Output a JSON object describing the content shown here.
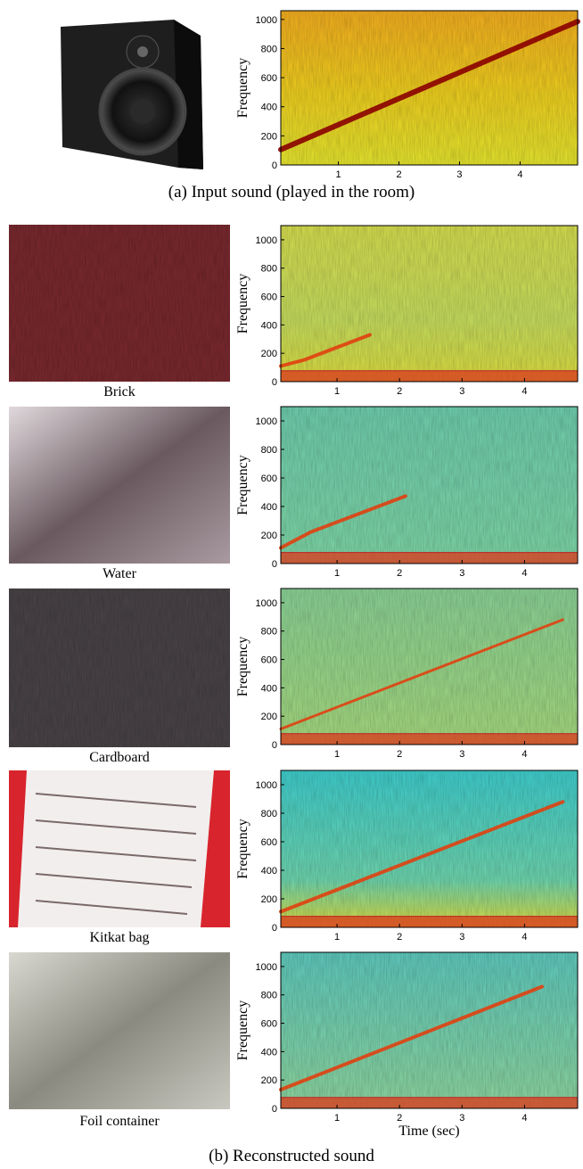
{
  "captions": {
    "a": "(a) Input sound (played in the room)",
    "b": "(b) Reconstructed sound"
  },
  "images": [
    {
      "label": "Brick"
    },
    {
      "label": "Water"
    },
    {
      "label": "Cardboard"
    },
    {
      "label": "Kitkat bag"
    },
    {
      "label": "Foil container"
    }
  ],
  "chart_data": [
    {
      "type": "spectrogram",
      "ylabel": "Frequency",
      "xlim": [
        0.05,
        4.95
      ],
      "xticks": [
        1,
        2,
        3,
        4
      ],
      "ylim": [
        0,
        1060
      ],
      "yticks": [
        0,
        200,
        400,
        600,
        800,
        1000
      ]
    },
    {
      "type": "spectrogram",
      "ylabel": "Frequency",
      "xlim": [
        0.1,
        4.85
      ],
      "xticks": [
        1,
        2,
        3,
        4
      ],
      "ylim": [
        0,
        1100
      ],
      "yticks": [
        0,
        200,
        400,
        600,
        800,
        1000
      ]
    },
    {
      "type": "spectrogram",
      "ylabel": "Frequency",
      "xlim": [
        0.1,
        4.85
      ],
      "xticks": [
        1,
        2,
        3,
        4
      ],
      "ylim": [
        0,
        1100
      ],
      "yticks": [
        0,
        200,
        400,
        600,
        800,
        1000
      ]
    },
    {
      "type": "spectrogram",
      "ylabel": "Frequency",
      "xlim": [
        0.1,
        4.85
      ],
      "xticks": [
        1,
        2,
        3,
        4
      ],
      "ylim": [
        0,
        1100
      ],
      "yticks": [
        0,
        200,
        400,
        600,
        800,
        1000
      ]
    },
    {
      "type": "spectrogram",
      "ylabel": "Frequency",
      "xlim": [
        0.1,
        4.85
      ],
      "xticks": [
        1,
        2,
        3,
        4
      ],
      "ylim": [
        0,
        1100
      ],
      "yticks": [
        0,
        200,
        400,
        600,
        800,
        1000
      ]
    },
    {
      "type": "spectrogram",
      "ylabel": "Frequency",
      "xlabel": "Time (sec)",
      "xlim": [
        0.1,
        4.85
      ],
      "xticks": [
        1,
        2,
        3,
        4
      ],
      "ylim": [
        0,
        1100
      ],
      "yticks": [
        0,
        200,
        400,
        600,
        800,
        1000
      ]
    }
  ]
}
